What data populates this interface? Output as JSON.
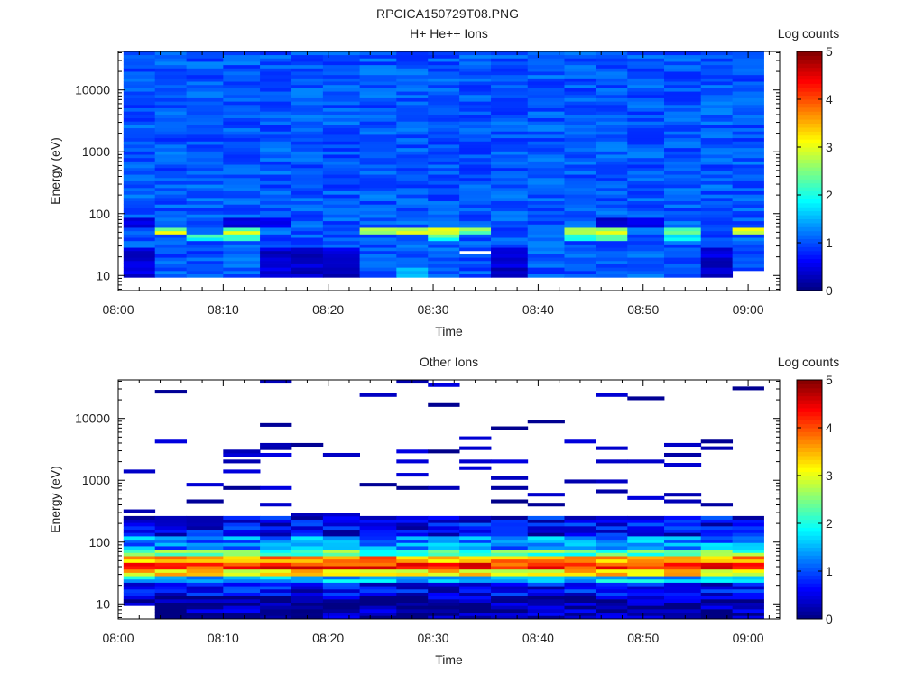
{
  "figure_title": "RPCICA150729T08.PNG",
  "colors": {
    "colormap": [
      "#00007f",
      "#0000ff",
      "#007fff",
      "#00ffff",
      "#7fff7f",
      "#ffff00",
      "#ff7f00",
      "#ff0000",
      "#7f0000"
    ]
  },
  "chart_data": [
    {
      "type": "heatmap",
      "title": "H+ He++ Ions",
      "xlabel": "Time",
      "ylabel": "Energy (eV)",
      "x_ticks": [
        "08:00",
        "08:10",
        "08:20",
        "08:30",
        "08:40",
        "08:50",
        "09:00"
      ],
      "y_ticks": [
        "10",
        "100",
        "1000",
        "10000"
      ],
      "y_scale": "log",
      "ylim": [
        5.7,
        42000
      ],
      "x_range": [
        "08:00",
        "09:03"
      ],
      "colorbar": {
        "label": "Log counts",
        "ticks": [
          "0",
          "1",
          "2",
          "3",
          "4",
          "5"
        ],
        "range": [
          0,
          5
        ]
      },
      "time_bins": [
        "08:02",
        "08:05",
        "08:08",
        "08:12",
        "08:15",
        "08:18",
        "08:21",
        "08:25",
        "08:28",
        "08:31",
        "08:34",
        "08:37",
        "08:41",
        "08:44",
        "08:47",
        "08:50",
        "08:54",
        "08:57",
        "09:00"
      ],
      "fill_energy_eV": [
        9,
        42000
      ],
      "background_log_counts": [
        0.8,
        1.3
      ],
      "features": [
        {
          "time_bins": [
            1,
            3,
            7,
            8,
            9,
            10,
            13,
            14,
            16,
            18
          ],
          "energy_eV": [
            45,
            58
          ],
          "log_counts": [
            2.2,
            3.1
          ]
        },
        {
          "time_bins": [
            2,
            3,
            9,
            13,
            14,
            16
          ],
          "energy_eV": [
            36,
            46
          ],
          "log_counts": [
            1.7,
            2.4
          ]
        },
        {
          "time_bins": [
            0,
            3,
            4,
            14,
            15
          ],
          "energy_eV": [
            60,
            90
          ],
          "log_counts": [
            0.3,
            0.6
          ]
        },
        {
          "time_bins": [
            0,
            4,
            5,
            6,
            11,
            17
          ],
          "energy_eV": [
            9,
            30
          ],
          "log_counts": [
            0.2,
            0.6
          ]
        },
        {
          "time_bins": [
            8
          ],
          "energy_eV": [
            9,
            14
          ],
          "log_counts": [
            1.4,
            1.6
          ]
        }
      ],
      "empty_cells": [
        {
          "time_bin": 10,
          "energy_eV": [
            22,
            25
          ]
        },
        {
          "time_bin": 18,
          "energy_eV": [
            8.8,
            12
          ]
        }
      ]
    },
    {
      "type": "heatmap",
      "title": "Other Ions",
      "xlabel": "Time",
      "ylabel": "Energy (eV)",
      "x_ticks": [
        "08:00",
        "08:10",
        "08:20",
        "08:30",
        "08:40",
        "08:50",
        "09:00"
      ],
      "y_ticks": [
        "10",
        "100",
        "1000",
        "10000"
      ],
      "y_scale": "log",
      "ylim": [
        5.7,
        42000
      ],
      "x_range": [
        "08:00",
        "09:03"
      ],
      "colorbar": {
        "label": "Log counts",
        "ticks": [
          "0",
          "1",
          "2",
          "3",
          "4",
          "5"
        ],
        "range": [
          0,
          5
        ]
      },
      "time_bins": [
        "08:02",
        "08:05",
        "08:08",
        "08:12",
        "08:15",
        "08:18",
        "08:21",
        "08:25",
        "08:28",
        "08:31",
        "08:34",
        "08:37",
        "08:41",
        "08:44",
        "08:47",
        "08:50",
        "08:54",
        "08:57",
        "09:00"
      ],
      "spectrum_by_energy_eV": [
        {
          "energy_eV": [
            5.7,
            14
          ],
          "log_counts": 0.2
        },
        {
          "energy_eV": [
            14,
            22
          ],
          "log_counts": 0.6
        },
        {
          "energy_eV": [
            22,
            28
          ],
          "log_counts": 1.6
        },
        {
          "energy_eV": [
            28,
            36
          ],
          "log_counts": 3.2
        },
        {
          "energy_eV": [
            36,
            46
          ],
          "log_counts": 4.2
        },
        {
          "energy_eV": [
            46,
            58
          ],
          "log_counts": 3.6
        },
        {
          "energy_eV": [
            58,
            75
          ],
          "log_counts": 2.3
        },
        {
          "energy_eV": [
            75,
            120
          ],
          "log_counts": 1.3
        },
        {
          "energy_eV": [
            120,
            250
          ],
          "log_counts": 0.6
        }
      ],
      "sparse_counts_above_eV": 250,
      "sparse_log_counts": [
        0.05,
        0.5
      ]
    }
  ]
}
